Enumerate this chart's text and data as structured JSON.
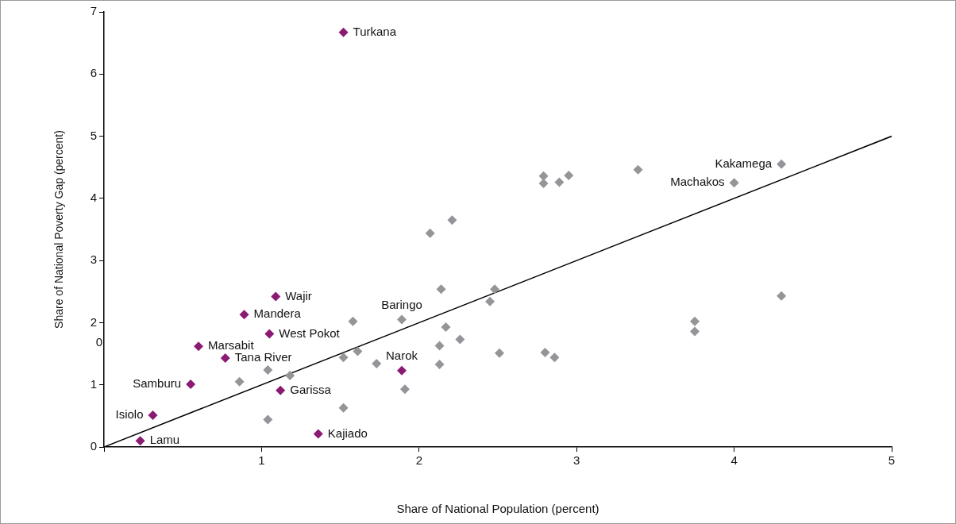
{
  "chart_data": {
    "type": "scatter",
    "xlabel": "Share of National Population (percent)",
    "ylabel": "Share of National Poverty Gap (percent)",
    "xlim": [
      0,
      5
    ],
    "xticks": [
      {
        "value": 0,
        "label": null
      },
      1,
      2,
      3,
      4,
      5
    ],
    "ylim": [
      0,
      7
    ],
    "yticks": [
      0,
      1,
      2,
      3,
      4,
      5,
      6,
      7
    ],
    "grid": false,
    "legend": false,
    "marker": "diamond",
    "series": [
      {
        "color": "#8b1a72",
        "x": [
          1.52,
          1.09,
          0.89,
          1.05,
          0.6,
          0.77,
          0.55,
          1.12,
          0.31,
          0.23,
          1.36,
          1.89
        ],
        "values": [
          6.67,
          2.42,
          2.13,
          1.82,
          1.62,
          1.43,
          1.01,
          0.91,
          0.51,
          0.1,
          0.21,
          1.23
        ]
      },
      {
        "color": "#939598",
        "x": [
          0.86,
          1.04,
          1.18,
          1.04,
          1.52,
          1.52,
          1.58,
          1.61,
          1.73,
          1.89,
          1.91,
          2.13,
          2.13,
          2.17,
          2.14,
          2.07,
          2.21,
          2.26,
          2.51,
          2.45,
          2.48,
          2.79,
          2.79,
          2.89,
          2.95,
          2.8,
          2.86,
          3.39,
          4.0,
          4.3,
          4.3,
          3.75,
          3.75
        ],
        "values": [
          1.05,
          1.24,
          1.15,
          0.44,
          0.63,
          1.44,
          2.02,
          1.54,
          1.34,
          2.05,
          0.93,
          1.33,
          1.63,
          1.93,
          2.54,
          3.44,
          3.65,
          1.73,
          1.51,
          2.34,
          2.54,
          4.24,
          4.36,
          4.26,
          4.37,
          1.52,
          1.44,
          4.46,
          4.25,
          4.55,
          2.43,
          2.02,
          1.86
        ]
      },
      {
        "type": "line",
        "color": "#000000",
        "marker": "none",
        "x": [
          0,
          5
        ],
        "values": [
          0,
          5
        ]
      }
    ],
    "annotations": [
      "0",
      {
        "text": "Turkana",
        "x": 1.52,
        "y": 6.67
      },
      {
        "text": "Wajir",
        "x": 1.09,
        "y": 2.42
      },
      {
        "text": "Mandera",
        "x": 0.89,
        "y": 2.13
      },
      {
        "text": "West Pokot",
        "x": 1.05,
        "y": 1.82
      },
      {
        "text": "Marsabit",
        "x": 0.6,
        "y": 1.62
      },
      {
        "text": "Tana River",
        "x": 0.77,
        "y": 1.43
      },
      {
        "text": "Samburu",
        "x": 0.55,
        "y": 1.01
      },
      {
        "text": "Garissa",
        "x": 1.12,
        "y": 0.91
      },
      {
        "text": "Isiolo",
        "x": 0.31,
        "y": 0.51
      },
      {
        "text": "Lamu",
        "x": 0.23,
        "y": 0.1
      },
      {
        "text": "Kajiado",
        "x": 1.36,
        "y": 0.21
      },
      {
        "text": "Narok",
        "x": 1.89,
        "y": 1.23
      },
      {
        "text": "Baringo",
        "x": 1.89,
        "y": 2.05
      },
      {
        "text": "Machakos",
        "x": 4.0,
        "y": 4.25
      },
      {
        "text": "Kakamega",
        "x": 4.3,
        "y": 4.55
      }
    ]
  }
}
